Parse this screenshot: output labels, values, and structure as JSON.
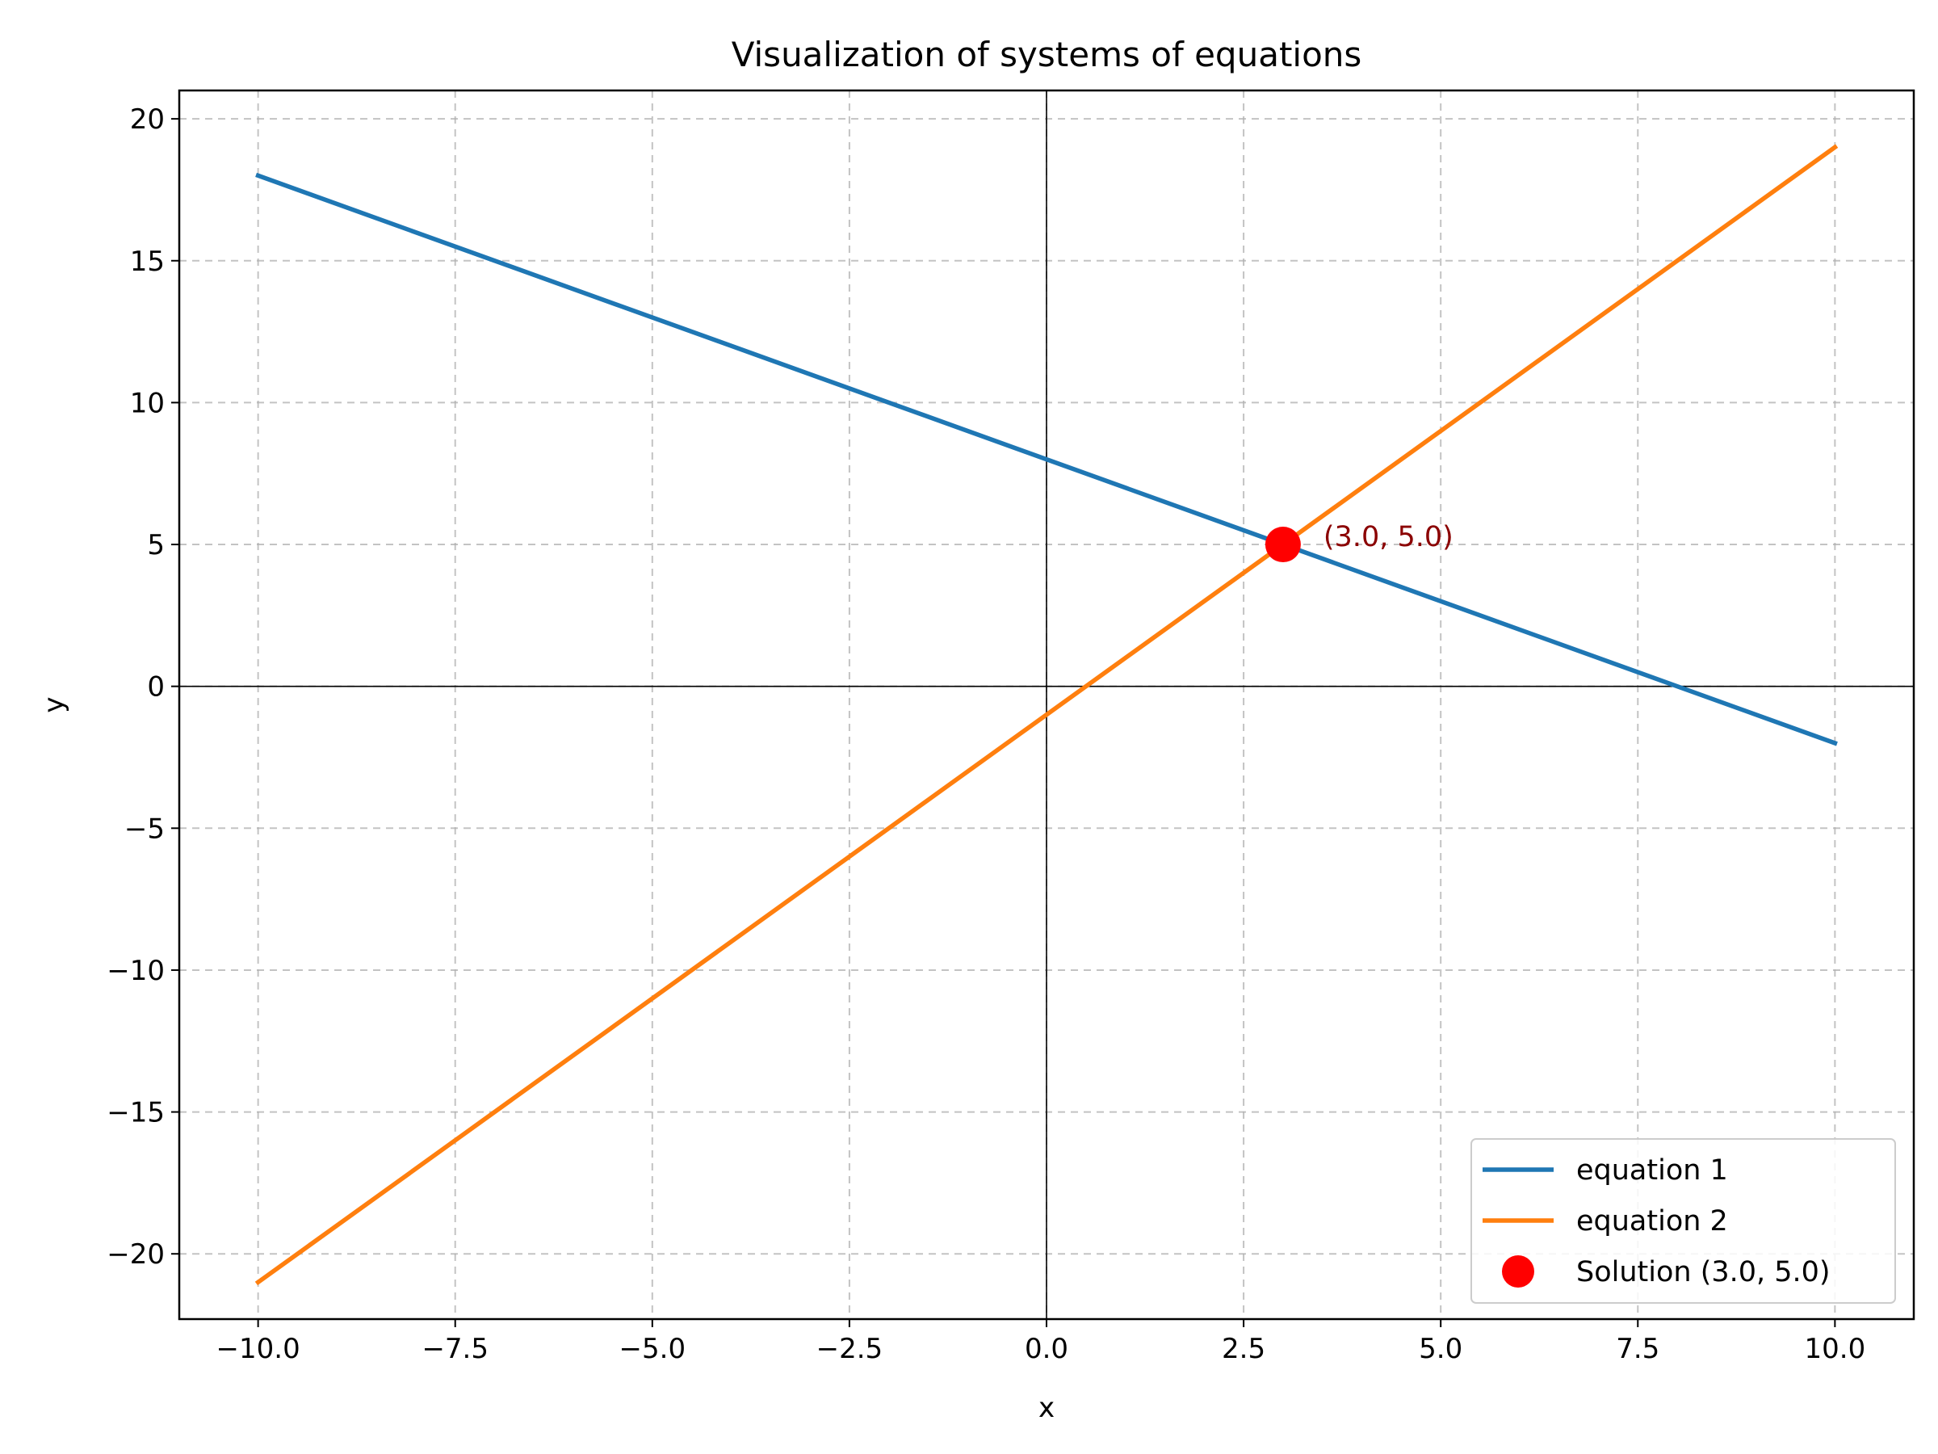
{
  "chart_data": {
    "type": "line",
    "title": "Visualization of systems of equations",
    "xlabel": "x",
    "ylabel": "y",
    "xlim": [
      -11,
      11
    ],
    "ylim": [
      -22.3,
      21
    ],
    "xticks": [
      -10,
      -7.5,
      -5,
      -2.5,
      0,
      2.5,
      5,
      7.5,
      10
    ],
    "xtick_labels": [
      "−10.0",
      "−7.5",
      "−5.0",
      "−2.5",
      "0.0",
      "2.5",
      "5.0",
      "7.5",
      "10.0"
    ],
    "yticks": [
      -20,
      -15,
      -10,
      -5,
      0,
      5,
      10,
      15,
      20
    ],
    "ytick_labels": [
      "−20",
      "−15",
      "−10",
      "−5",
      "0",
      "5",
      "10",
      "15",
      "20"
    ],
    "grid": true,
    "legend_position": "bottom-right",
    "series": [
      {
        "name": "equation 1",
        "color": "#1f77b4",
        "x": [
          -10,
          10
        ],
        "y": [
          18,
          -2
        ]
      },
      {
        "name": "equation 2",
        "color": "#ff7f0e",
        "x": [
          -10,
          10
        ],
        "y": [
          -21,
          19
        ]
      }
    ],
    "point": {
      "name": "Solution (3.0, 5.0)",
      "x": 3.0,
      "y": 5.0,
      "color": "#ff0000"
    },
    "annotation": {
      "text": "(3.0, 5.0)",
      "x": 3.0,
      "y": 5.0,
      "color": "#8b0000"
    }
  }
}
